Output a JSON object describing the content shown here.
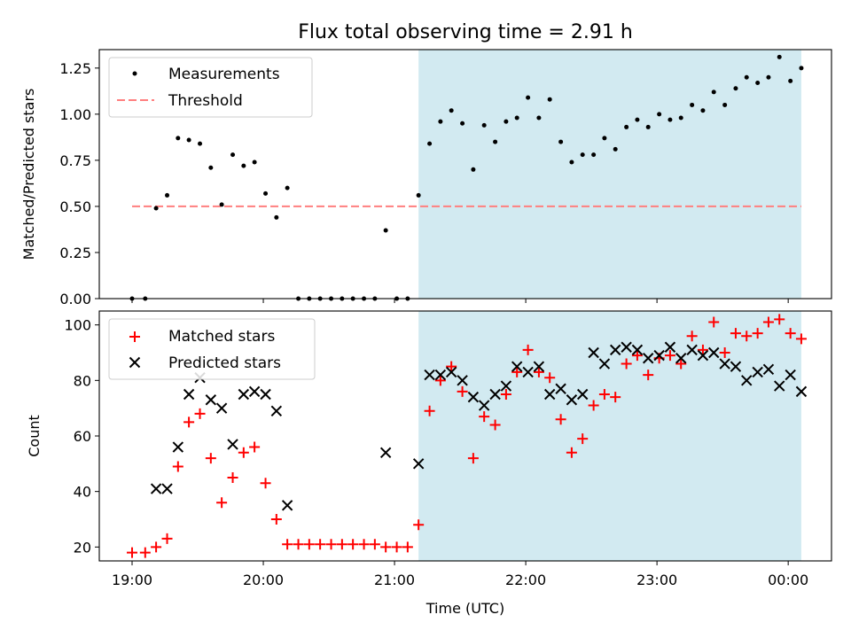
{
  "title": "Flux total observing time = 2.91 h",
  "colors": {
    "shade": "#add8e6",
    "measurement": "#000000",
    "threshold": "#ff7f7f",
    "matched": "#ff0000",
    "predicted": "#000000"
  },
  "chart_data": [
    {
      "type": "scatter",
      "panel": "top",
      "ylabel": "Matched/Predicted stars",
      "ylim": [
        0,
        1.35
      ],
      "yticks": [
        "0.00",
        "0.25",
        "0.50",
        "0.75",
        "1.00",
        "1.25"
      ],
      "xlim_hours": [
        18.75,
        24.33
      ],
      "shaded_region_hours": [
        21.183,
        24.1
      ],
      "threshold": {
        "name": "Threshold",
        "value": 0.5,
        "x_hours": [
          19.0,
          24.1
        ]
      },
      "legend": {
        "location": "upper left",
        "entries": [
          "Measurements",
          "Threshold"
        ]
      },
      "series": [
        {
          "name": "Measurements",
          "x_hours": [
            19.0,
            19.1,
            19.183,
            19.267,
            19.35,
            19.433,
            19.517,
            19.6,
            19.683,
            19.767,
            19.85,
            19.933,
            20.017,
            20.1,
            20.183,
            20.267,
            20.35,
            20.433,
            20.517,
            20.6,
            20.683,
            20.767,
            20.85,
            20.933,
            21.017,
            21.1,
            21.183,
            21.267,
            21.35,
            21.433,
            21.517,
            21.6,
            21.683,
            21.767,
            21.85,
            21.933,
            22.017,
            22.1,
            22.183,
            22.267,
            22.35,
            22.433,
            22.517,
            22.6,
            22.683,
            22.767,
            22.85,
            22.933,
            23.017,
            23.1,
            23.183,
            23.267,
            23.35,
            23.433,
            23.517,
            23.6,
            23.683,
            23.767,
            23.85,
            23.933,
            24.017,
            24.1
          ],
          "y": [
            0.0,
            0.0,
            0.49,
            0.56,
            0.87,
            0.86,
            0.84,
            0.71,
            0.51,
            0.78,
            0.72,
            0.74,
            0.57,
            0.44,
            0.6,
            0.0,
            0.0,
            0.0,
            0.0,
            0.0,
            0.0,
            0.0,
            0.0,
            0.37,
            0.0,
            0.0,
            0.56,
            0.84,
            0.96,
            1.02,
            0.95,
            0.7,
            0.94,
            0.85,
            0.96,
            0.98,
            1.09,
            0.98,
            1.08,
            0.85,
            0.74,
            0.78,
            0.78,
            0.87,
            0.81,
            0.93,
            0.97,
            0.93,
            1.0,
            0.97,
            0.98,
            1.05,
            1.02,
            1.12,
            1.05,
            1.14,
            1.2,
            1.17,
            1.2,
            1.31,
            1.18,
            1.25
          ]
        }
      ]
    },
    {
      "type": "scatter",
      "panel": "bottom",
      "xlabel": "Time (UTC)",
      "ylabel": "Count",
      "ylim": [
        15,
        105
      ],
      "yticks": [
        "20",
        "40",
        "60",
        "80",
        "100"
      ],
      "xticks": [
        "19:00",
        "20:00",
        "21:00",
        "22:00",
        "23:00",
        "00:00"
      ],
      "xlim_hours": [
        18.75,
        24.33
      ],
      "shaded_region_hours": [
        21.183,
        24.1
      ],
      "legend": {
        "location": "upper left",
        "entries": [
          "Matched stars",
          "Predicted stars"
        ]
      },
      "series": [
        {
          "name": "Matched stars",
          "marker": "+",
          "x_hours": [
            19.0,
            19.1,
            19.183,
            19.267,
            19.35,
            19.433,
            19.517,
            19.6,
            19.683,
            19.767,
            19.85,
            19.933,
            20.017,
            20.1,
            20.183,
            20.267,
            20.35,
            20.433,
            20.517,
            20.6,
            20.683,
            20.767,
            20.85,
            20.933,
            21.017,
            21.1,
            21.183,
            21.267,
            21.35,
            21.433,
            21.517,
            21.6,
            21.683,
            21.767,
            21.85,
            21.933,
            22.017,
            22.1,
            22.183,
            22.267,
            22.35,
            22.433,
            22.517,
            22.6,
            22.683,
            22.767,
            22.85,
            22.933,
            23.017,
            23.1,
            23.183,
            23.267,
            23.35,
            23.433,
            23.517,
            23.6,
            23.683,
            23.767,
            23.85,
            23.933,
            24.017,
            24.1
          ],
          "y": [
            18,
            18,
            20,
            23,
            49,
            65,
            68,
            52,
            36,
            45,
            54,
            56,
            43,
            30,
            21,
            21,
            21,
            21,
            21,
            21,
            21,
            21,
            21,
            20,
            20,
            20,
            28,
            69,
            80,
            85,
            76,
            52,
            67,
            64,
            75,
            83,
            91,
            83,
            81,
            66,
            54,
            59,
            71,
            75,
            74,
            86,
            89,
            82,
            88,
            89,
            86,
            96,
            91,
            101,
            90,
            97,
            96,
            97,
            101,
            102,
            97,
            95
          ]
        },
        {
          "name": "Predicted stars",
          "marker": "x",
          "x_hours": [
            19.183,
            19.267,
            19.35,
            19.433,
            19.517,
            19.6,
            19.683,
            19.767,
            19.85,
            19.933,
            20.017,
            20.1,
            20.183,
            20.933,
            21.183,
            21.267,
            21.35,
            21.433,
            21.517,
            21.6,
            21.683,
            21.767,
            21.85,
            21.933,
            22.017,
            22.1,
            22.183,
            22.267,
            22.35,
            22.433,
            22.517,
            22.6,
            22.683,
            22.767,
            22.85,
            22.933,
            23.017,
            23.1,
            23.183,
            23.267,
            23.35,
            23.433,
            23.517,
            23.6,
            23.683,
            23.767,
            23.85,
            23.933,
            24.017,
            24.1
          ],
          "y": [
            41,
            41,
            56,
            75,
            81,
            73,
            70,
            57,
            75,
            76,
            75,
            69,
            35,
            54,
            50,
            82,
            82,
            83,
            80,
            74,
            71,
            75,
            78,
            85,
            83,
            85,
            75,
            77,
            73,
            75,
            90,
            86,
            91,
            92,
            91,
            88,
            89,
            92,
            88,
            91,
            89,
            90,
            86,
            85,
            80,
            83,
            84,
            78,
            82,
            76
          ]
        }
      ]
    }
  ]
}
